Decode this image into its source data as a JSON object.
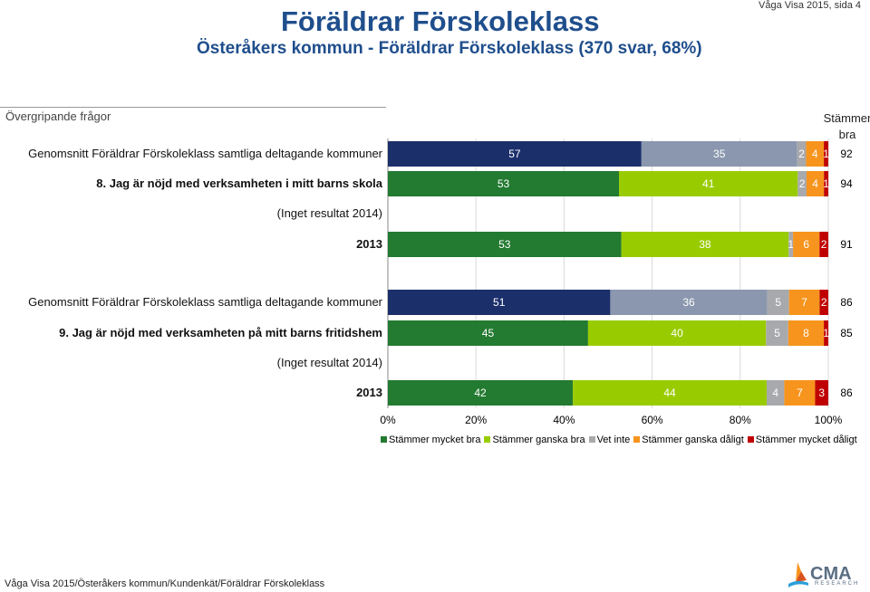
{
  "header": {
    "title": "Föräldrar Förskoleklass",
    "subtitle": "Österåkers kommun - Föräldrar Förskoleklass (370 svar, 68%)",
    "page_info": "Våga Visa 2015, sida 4"
  },
  "section_title": "Övergripande frågor",
  "column_header": "Stämmer bra",
  "rows": [
    {
      "label": "Genomsnitt Föräldrar Förskoleklass samtliga deltagande kommuner",
      "values": [
        57,
        35,
        2,
        4,
        1
      ],
      "total": "92",
      "question": false
    },
    {
      "label": "8. Jag är nöjd med verksamheten i mitt barns skola",
      "values": [
        53,
        41,
        2,
        4,
        1
      ],
      "total": "94",
      "question": true
    },
    {
      "label": "(Inget resultat 2014)",
      "values": [],
      "total": "",
      "question": false
    },
    {
      "label": "2013",
      "values": [
        53,
        38,
        1,
        6,
        2
      ],
      "total": "91",
      "question": true
    },
    {
      "label": "Genomsnitt Föräldrar Förskoleklass samtliga deltagande kommuner",
      "values": [
        51,
        36,
        5,
        7,
        2
      ],
      "total": "86",
      "question": false
    },
    {
      "label": "9. Jag är nöjd med verksamheten på mitt barns fritidshem",
      "values": [
        45,
        40,
        5,
        8,
        1
      ],
      "total": "85",
      "question": true
    },
    {
      "label": "(Inget resultat 2014)",
      "values": [],
      "total": "",
      "question": false
    },
    {
      "label": "2013",
      "values": [
        42,
        44,
        4,
        7,
        3
      ],
      "total": "86",
      "question": true
    }
  ],
  "chart_data": {
    "type": "bar",
    "orientation": "horizontal-stacked-100",
    "categories": [
      "Genomsnitt Föräldrar Förskoleklass samtliga deltagande kommuner",
      "8. Jag är nöjd med verksamheten i mitt barns skola",
      "(Inget resultat 2014)",
      "2013",
      "Genomsnitt Föräldrar Förskoleklass samtliga deltagande kommuner",
      "9. Jag är nöjd med verksamheten på mitt barns fritidshem",
      "(Inget resultat 2014)",
      "2013"
    ],
    "series": [
      {
        "name": "Stämmer mycket bra",
        "values": [
          57,
          53,
          null,
          53,
          51,
          45,
          null,
          42
        ]
      },
      {
        "name": "Stämmer ganska bra",
        "values": [
          35,
          41,
          null,
          38,
          36,
          40,
          null,
          44
        ]
      },
      {
        "name": "Vet inte",
        "values": [
          2,
          2,
          null,
          1,
          5,
          5,
          null,
          4
        ]
      },
      {
        "name": "Stämmer ganska dåligt",
        "values": [
          4,
          4,
          null,
          6,
          7,
          8,
          null,
          7
        ]
      },
      {
        "name": "Stämmer mycket dåligt",
        "values": [
          1,
          1,
          null,
          2,
          2,
          1,
          null,
          3
        ]
      }
    ],
    "x_ticks": [
      "0%",
      "20%",
      "40%",
      "60%",
      "80%",
      "100%"
    ],
    "xlim": [
      0,
      100
    ],
    "grid": true,
    "legend_position": "bottom"
  },
  "colors": {
    "avg": [
      "#1b2f6b",
      "#8a97ae",
      "#a7a9ac",
      "#f7941d",
      "#c00000"
    ],
    "school": [
      "#237a31",
      "#99cc00",
      "#a7a9ac",
      "#f7941d",
      "#c00000"
    ]
  },
  "legend": [
    {
      "label": "Stämmer mycket bra",
      "color": "#237a31"
    },
    {
      "label": "Stämmer ganska bra",
      "color": "#99cc00"
    },
    {
      "label": "Vet inte",
      "color": "#a7a9ac"
    },
    {
      "label": "Stämmer ganska dåligt",
      "color": "#f7941d"
    },
    {
      "label": "Stämmer mycket dåligt",
      "color": "#c00000"
    }
  ],
  "footer": "Våga Visa 2015/Österåkers kommun/Kundenkät/Föräldrar Förskoleklass",
  "logo": {
    "name": "CMA",
    "sub": "RESEARCH"
  }
}
